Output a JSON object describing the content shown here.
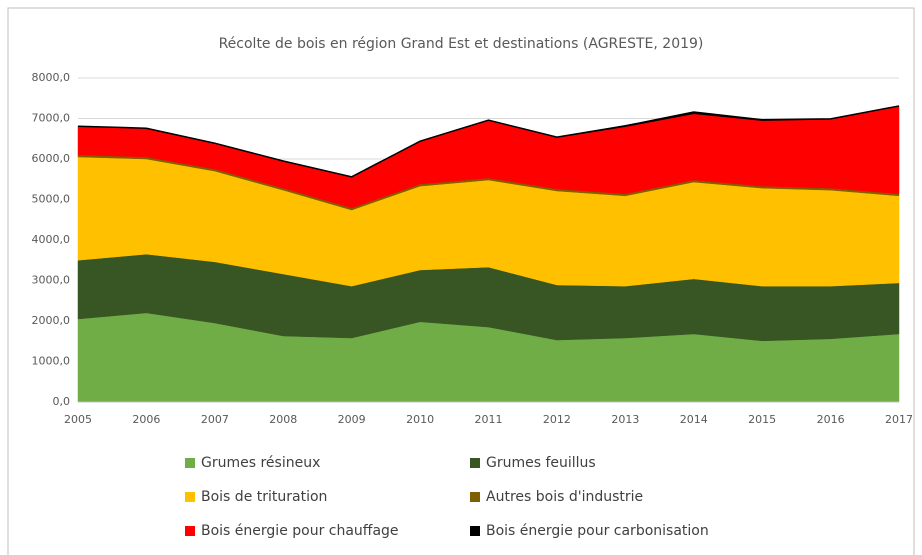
{
  "chart_data": {
    "type": "stacked_area",
    "title": "Récolte de bois en région Grand Est et destinations (AGRESTE, 2019)",
    "categories": [
      "2005",
      "2006",
      "2007",
      "2008",
      "2009",
      "2010",
      "2011",
      "2012",
      "2013",
      "2014",
      "2015",
      "2016",
      "2017"
    ],
    "series": [
      {
        "name": "Grumes résineux",
        "color": "#70ad47",
        "values": [
          2050,
          2200,
          1950,
          1630,
          1580,
          1980,
          1850,
          1530,
          1580,
          1680,
          1510,
          1560,
          1680
        ]
      },
      {
        "name": "Grumes feuillus",
        "color": "#375623",
        "values": [
          1450,
          1450,
          1510,
          1530,
          1280,
          1280,
          1480,
          1360,
          1280,
          1360,
          1350,
          1300,
          1260
        ]
      },
      {
        "name": "Bois de trituration",
        "color": "#ffc000",
        "values": [
          2550,
          2350,
          2240,
          2070,
          1880,
          2070,
          2150,
          2320,
          2230,
          2390,
          2420,
          2370,
          2150
        ]
      },
      {
        "name": "Autres bois d'industrie",
        "color": "#7f6000",
        "values": [
          50,
          50,
          50,
          50,
          50,
          50,
          50,
          50,
          50,
          50,
          50,
          50,
          50
        ]
      },
      {
        "name": "Bois énergie pour chauffage",
        "color": "#ff0000",
        "values": [
          710,
          710,
          640,
          670,
          770,
          1060,
          1430,
          1280,
          1670,
          1650,
          1630,
          1710,
          2170
        ]
      },
      {
        "name": "Bois énergie pour carbonisation",
        "color": "#000000",
        "values": [
          0,
          0,
          0,
          0,
          0,
          0,
          0,
          0,
          10,
          30,
          10,
          0,
          0
        ]
      }
    ],
    "ylim": [
      0,
      8000
    ],
    "yticks": [
      {
        "value": 0,
        "label": "0,0"
      },
      {
        "value": 1000,
        "label": "1000,0"
      },
      {
        "value": 2000,
        "label": "2000,0"
      },
      {
        "value": 3000,
        "label": "3000,0"
      },
      {
        "value": 4000,
        "label": "4000,0"
      },
      {
        "value": 5000,
        "label": "5000,0"
      },
      {
        "value": 6000,
        "label": "6000,0"
      },
      {
        "value": 7000,
        "label": "7000,0"
      },
      {
        "value": 8000,
        "label": "8000,0"
      }
    ],
    "grid": true,
    "legend": "bottom"
  }
}
